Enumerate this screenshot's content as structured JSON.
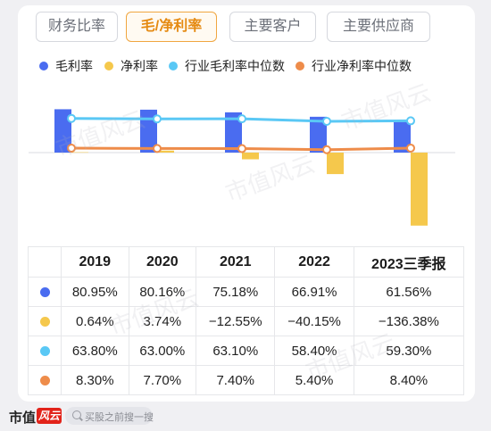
{
  "tabs": [
    {
      "label": "财务比率",
      "active": false
    },
    {
      "label": "毛/净利率",
      "active": true
    },
    {
      "label": "主要客户",
      "active": false
    },
    {
      "label": "主要供应商",
      "active": false
    }
  ],
  "watermark_text": "市值风云",
  "footer": {
    "logo": "市值",
    "logo_badge": "风云",
    "search_placeholder": "买股之前搜一搜"
  },
  "colors": {
    "gross": "#4a6cf0",
    "net": "#f5c84c",
    "ind_gross": "#5ac8f5",
    "ind_net": "#ee8c4a"
  },
  "chart_data": {
    "type": "bar",
    "categories": [
      "2019",
      "2020",
      "2021",
      "2022",
      "2023三季报"
    ],
    "series": [
      {
        "name": "毛利率",
        "kind": "bar",
        "color": "#4a6cf0",
        "values": [
          80.95,
          80.16,
          75.18,
          66.91,
          61.56
        ]
      },
      {
        "name": "净利率",
        "kind": "bar",
        "color": "#f5c84c",
        "values": [
          0.64,
          3.74,
          -12.55,
          -40.15,
          -136.38
        ]
      },
      {
        "name": "行业毛利率中位数",
        "kind": "line",
        "color": "#5ac8f5",
        "values": [
          63.8,
          63.0,
          63.1,
          58.4,
          59.3
        ]
      },
      {
        "name": "行业净利率中位数",
        "kind": "line",
        "color": "#ee8c4a",
        "values": [
          8.3,
          7.7,
          7.4,
          5.4,
          8.4
        ]
      }
    ],
    "table": {
      "header": [
        "2019",
        "2020",
        "2021",
        "2022",
        "2023三季报"
      ],
      "rows": [
        [
          "80.95%",
          "80.16%",
          "75.18%",
          "66.91%",
          "61.56%"
        ],
        [
          "0.64%",
          "3.74%",
          "−12.55%",
          "−40.15%",
          "−136.38%"
        ],
        [
          "63.80%",
          "63.00%",
          "63.10%",
          "58.40%",
          "59.30%"
        ],
        [
          "8.30%",
          "7.70%",
          "7.40%",
          "5.40%",
          "8.40%"
        ]
      ]
    },
    "legend": "top",
    "grid": false
  }
}
